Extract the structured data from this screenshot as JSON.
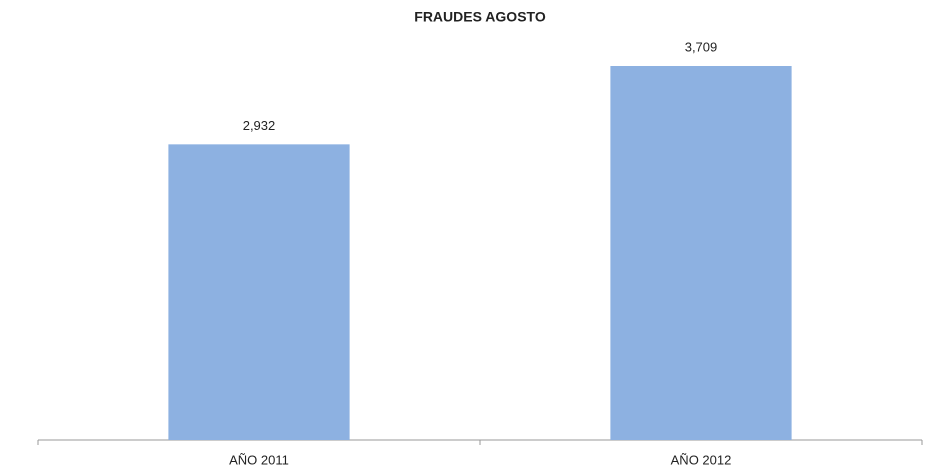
{
  "chart_data": {
    "type": "bar",
    "title": "FRAUDES AGOSTO",
    "categories": [
      "AÑO 2011",
      "AÑO 2012"
    ],
    "values": [
      2932,
      3709
    ],
    "value_labels": [
      "2,932",
      "3,709"
    ],
    "color": "#8db1e1"
  }
}
